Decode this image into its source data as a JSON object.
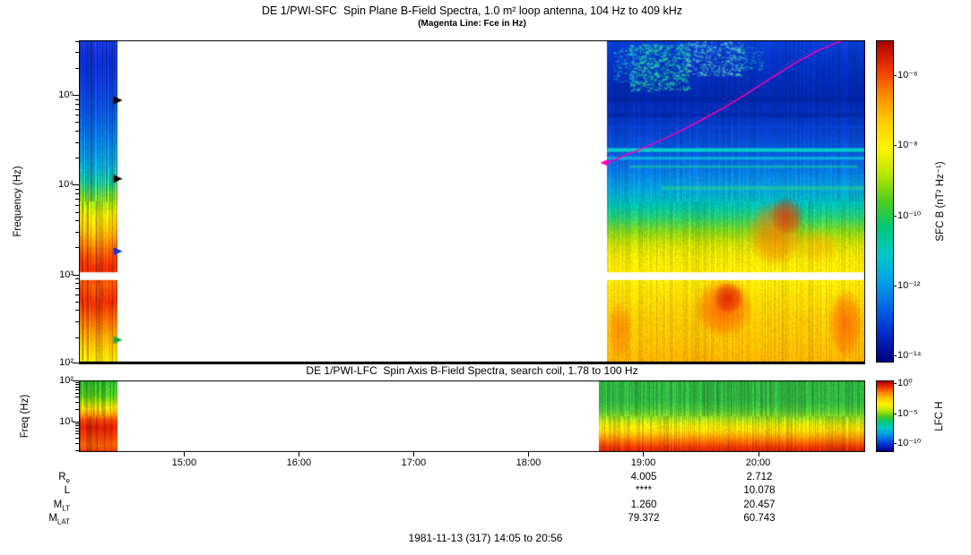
{
  "footer": {
    "date_label": "1981-11-13 (317) 14:05 to 20:56"
  },
  "xaxis": {
    "ticks": [
      {
        "label": "15:00"
      },
      {
        "label": "16:00"
      },
      {
        "label": "17:00"
      },
      {
        "label": "18:00"
      },
      {
        "label": "19:00"
      },
      {
        "label": "20:00"
      }
    ]
  },
  "ephemeris": {
    "value_columns_under": [
      "19:00",
      "20:00"
    ],
    "rows": [
      {
        "base": "R",
        "sub": "e",
        "values": [
          "4.005",
          "2.712"
        ]
      },
      {
        "base": "L",
        "sub": "",
        "values": [
          "****",
          "10.078"
        ]
      },
      {
        "base": "M",
        "sub": "LT",
        "values": [
          "1.260",
          "20.457"
        ]
      },
      {
        "base": "M",
        "sub": "LAT",
        "values": [
          "79.372",
          "60.743"
        ]
      }
    ]
  },
  "chart_data": [
    {
      "type": "heatmap",
      "id": "sfc",
      "title": "DE 1/PWI-SFC  Spin Plane B-Field Spectra, 1.0 m² loop antenna, 104 Hz to 409 kHz",
      "subtitle": "(Magenta Line: Fce in Hz)",
      "ylabel": "Frequency (Hz)",
      "x_range": [
        "14:05",
        "20:56"
      ],
      "y_range_hz": [
        104,
        409000
      ],
      "yticks": [
        {
          "f": 100000,
          "label": "10⁵"
        },
        {
          "f": 10000,
          "label": "10⁴"
        },
        {
          "f": 1000,
          "label": "10³"
        },
        {
          "f": 100,
          "label": "10²"
        }
      ],
      "colorbar": {
        "label": "SFC B (nT² Hz⁻¹)",
        "exp_range": [
          -5,
          -14.2
        ],
        "ticks": [
          {
            "e": -6,
            "label": "10⁻⁶"
          },
          {
            "e": -8,
            "label": "10⁻⁸"
          },
          {
            "e": -10,
            "label": "10⁻¹⁰"
          },
          {
            "e": -12,
            "label": "10⁻¹²"
          },
          {
            "e": -14,
            "label": "10⁻¹⁴"
          }
        ],
        "colors": [
          "#aa0000",
          "#ee3300",
          "#ff8800",
          "#ffcc00",
          "#fff200",
          "#b8e600",
          "#4ecc1e",
          "#00c878",
          "#00c8c8",
          "#00a0e6",
          "#0064e6",
          "#0028c8",
          "#000080"
        ]
      },
      "data_gap": [
        "14:25",
        "18:41"
      ],
      "white_band_yfrac": [
        0.72,
        0.744
      ],
      "blocks": [
        {
          "t0": "14:05",
          "t1": "14:25",
          "noise": 0.28,
          "wiggle": 0.02,
          "stops": [
            [
              0,
              "#1a3adf"
            ],
            [
              0.06,
              "#0b2fd0"
            ],
            [
              0.14,
              "#0d3cd8"
            ],
            [
              0.22,
              "#0a55e0"
            ],
            [
              0.3,
              "#0878e8"
            ],
            [
              0.38,
              "#09a0d8"
            ],
            [
              0.44,
              "#18c49a"
            ],
            [
              0.49,
              "#7ed41e"
            ],
            [
              0.54,
              "#e0d800"
            ],
            [
              0.59,
              "#ffb400"
            ],
            [
              0.64,
              "#ff7000"
            ],
            [
              0.69,
              "#f03000"
            ],
            [
              0.72,
              "#e02800"
            ],
            [
              0.75,
              "#ff5a00"
            ],
            [
              0.81,
              "#e82800"
            ],
            [
              0.87,
              "#ff6a00"
            ],
            [
              0.93,
              "#ffaa00"
            ],
            [
              1,
              "#ffe000"
            ]
          ]
        },
        {
          "t0": "18:41",
          "t1": "20:56",
          "noise": 0.1,
          "wiggle": 0.006,
          "stops": [
            [
              0,
              "#0840d8"
            ],
            [
              0.05,
              "#0536c8"
            ],
            [
              0.1,
              "#0430bf"
            ],
            [
              0.16,
              "#0328b0"
            ],
            [
              0.22,
              "#0530bc"
            ],
            [
              0.28,
              "#0740cc"
            ],
            [
              0.34,
              "#0858dc"
            ],
            [
              0.4,
              "#0878e6"
            ],
            [
              0.46,
              "#06a0dc"
            ],
            [
              0.51,
              "#00c0b4"
            ],
            [
              0.55,
              "#28cc6e"
            ],
            [
              0.59,
              "#80d41e"
            ],
            [
              0.63,
              "#ccdc00"
            ],
            [
              0.67,
              "#f0e200"
            ],
            [
              0.71,
              "#ffe800"
            ],
            [
              0.745,
              "#ffe800"
            ],
            [
              0.8,
              "#ffd800"
            ],
            [
              0.86,
              "#ffc800"
            ],
            [
              0.93,
              "#ffc000"
            ],
            [
              1,
              "#ffb000"
            ]
          ]
        }
      ],
      "features": [
        {
          "type": "patch",
          "x0": 0.7,
          "x1": 0.775,
          "y0": 0.01,
          "y1": 0.155,
          "color": "#2ae6a0",
          "alpha": 0.55,
          "density": 0.2
        },
        {
          "type": "patch",
          "x0": 0.77,
          "x1": 0.845,
          "y0": 0.0,
          "y1": 0.11,
          "color": "#6cf0c8",
          "alpha": 0.45,
          "density": 0.16
        },
        {
          "type": "patch",
          "x0": 0.678,
          "x1": 0.705,
          "y0": 0.02,
          "y1": 0.13,
          "color": "#28c8f0",
          "alpha": 0.4,
          "density": 0.14
        },
        {
          "type": "patch",
          "x0": 0.84,
          "x1": 0.87,
          "y0": 0.02,
          "y1": 0.09,
          "color": "#28dcc8",
          "alpha": 0.35,
          "density": 0.12
        },
        {
          "type": "hline",
          "x0": 0.672,
          "x1": 1.0,
          "y": 0.175,
          "h": 0.018,
          "color": "#001e96",
          "alpha": 0.45
        },
        {
          "type": "hline",
          "x0": 0.672,
          "x1": 1.0,
          "y": 0.225,
          "h": 0.014,
          "color": "#001e96",
          "alpha": 0.4
        },
        {
          "type": "hline",
          "x0": 0.672,
          "x1": 1.0,
          "y": 0.264,
          "h": 0.01,
          "color": "#0a46dc",
          "alpha": 0.5
        },
        {
          "type": "hline",
          "x0": 0.672,
          "x1": 1.0,
          "y": 0.335,
          "h": 0.011,
          "color": "#00e6c8",
          "alpha": 0.85
        },
        {
          "type": "hline",
          "x0": 0.672,
          "x1": 1.0,
          "y": 0.362,
          "h": 0.008,
          "color": "#00d8dc",
          "alpha": 0.7
        },
        {
          "type": "hline",
          "x0": 0.7,
          "x1": 0.99,
          "y": 0.388,
          "h": 0.008,
          "color": "#14cda0",
          "alpha": 0.6
        },
        {
          "type": "hline",
          "x0": 0.74,
          "x1": 1.0,
          "y": 0.452,
          "h": 0.013,
          "color": "#2ad88c",
          "alpha": 0.5
        },
        {
          "type": "blob",
          "cx": 0.886,
          "cy": 0.6,
          "rx": 0.038,
          "ry": 0.105,
          "color": "#ff7800",
          "alpha": 0.75
        },
        {
          "type": "blob",
          "cx": 0.9,
          "cy": 0.545,
          "rx": 0.022,
          "ry": 0.06,
          "color": "#e62800",
          "alpha": 0.7
        },
        {
          "type": "blob",
          "cx": 0.94,
          "cy": 0.64,
          "rx": 0.03,
          "ry": 0.055,
          "color": "#ffaa00",
          "alpha": 0.55
        },
        {
          "type": "blob",
          "cx": 0.82,
          "cy": 0.83,
          "rx": 0.038,
          "ry": 0.095,
          "color": "#ff5a00",
          "alpha": 0.85
        },
        {
          "type": "blob",
          "cx": 0.826,
          "cy": 0.8,
          "rx": 0.02,
          "ry": 0.05,
          "color": "#dc1400",
          "alpha": 0.8
        },
        {
          "type": "blob",
          "cx": 0.975,
          "cy": 0.88,
          "rx": 0.022,
          "ry": 0.11,
          "color": "#ff4600",
          "alpha": 0.65
        },
        {
          "type": "blob",
          "cx": 0.688,
          "cy": 0.9,
          "rx": 0.016,
          "ry": 0.09,
          "color": "#ff6400",
          "alpha": 0.55
        }
      ],
      "markers": [
        {
          "y": 0.186,
          "color": "#000000"
        },
        {
          "y": 0.43,
          "color": "#000000"
        },
        {
          "y": 0.655,
          "color": "#1e32c8"
        },
        {
          "y": 0.93,
          "color": "#1eaa46"
        }
      ],
      "fce_line": {
        "name": "Fce",
        "color": "#ff00bb",
        "points": [
          [
            0.672,
            0.38
          ],
          [
            0.7,
            0.352
          ],
          [
            0.73,
            0.322
          ],
          [
            0.76,
            0.288
          ],
          [
            0.79,
            0.25
          ],
          [
            0.82,
            0.21
          ],
          [
            0.85,
            0.165
          ],
          [
            0.88,
            0.118
          ],
          [
            0.91,
            0.072
          ],
          [
            0.94,
            0.032
          ],
          [
            0.965,
            0.006
          ],
          [
            0.982,
            -0.006
          ]
        ]
      }
    },
    {
      "type": "heatmap",
      "id": "lfc",
      "title": "DE 1/PWI-LFC  Spin Axis B-Field Spectra, search coil, 1.78 to 100 Hz",
      "ylabel": "Freq (Hz)",
      "x_range": [
        "14:05",
        "20:56"
      ],
      "y_range_hz": [
        1.78,
        100
      ],
      "yticks": [
        {
          "f": 100,
          "label": "10²"
        },
        {
          "f": 10,
          "label": "10¹"
        }
      ],
      "colorbar": {
        "label": "LFC H",
        "exp_range": [
          0.5,
          -11.5
        ],
        "ticks": [
          {
            "e": 0,
            "label": "10⁰"
          },
          {
            "e": -5,
            "label": "10⁻⁵"
          },
          {
            "e": -10,
            "label": "10⁻¹⁰"
          }
        ],
        "colors": [
          "#aa0000",
          "#ee3300",
          "#ff8800",
          "#ffcc00",
          "#fff200",
          "#b8e600",
          "#4ecc1e",
          "#00c878",
          "#00c8c8",
          "#00a0e6",
          "#0064e6",
          "#0028c8",
          "#000080"
        ]
      },
      "data_gap": [
        "14:25",
        "18:37"
      ],
      "blocks": [
        {
          "t0": "14:05",
          "t1": "14:25",
          "noise": 0.22,
          "wiggle": 0.015,
          "stops": [
            [
              0,
              "#2fb32f"
            ],
            [
              0.2,
              "#49c31e"
            ],
            [
              0.3,
              "#a0d200"
            ],
            [
              0.38,
              "#e6d200"
            ],
            [
              0.46,
              "#ffa000"
            ],
            [
              0.54,
              "#f04600"
            ],
            [
              0.64,
              "#d21e00"
            ],
            [
              0.78,
              "#e63c00"
            ],
            [
              0.9,
              "#f05a00"
            ],
            [
              1,
              "#e63200"
            ]
          ]
        },
        {
          "t0": "18:37",
          "t1": "20:56",
          "noise": 0.16,
          "wiggle": 0.008,
          "stops": [
            [
              0,
              "#2fb341"
            ],
            [
              0.28,
              "#2fb341"
            ],
            [
              0.4,
              "#46c337"
            ],
            [
              0.48,
              "#78cd28"
            ],
            [
              0.56,
              "#b4dc14"
            ],
            [
              0.63,
              "#e6dc00"
            ],
            [
              0.7,
              "#ffd200"
            ],
            [
              0.78,
              "#ffa000"
            ],
            [
              0.86,
              "#ff6400"
            ],
            [
              0.93,
              "#e63200"
            ],
            [
              1,
              "#d22800"
            ]
          ]
        }
      ],
      "features": []
    }
  ]
}
